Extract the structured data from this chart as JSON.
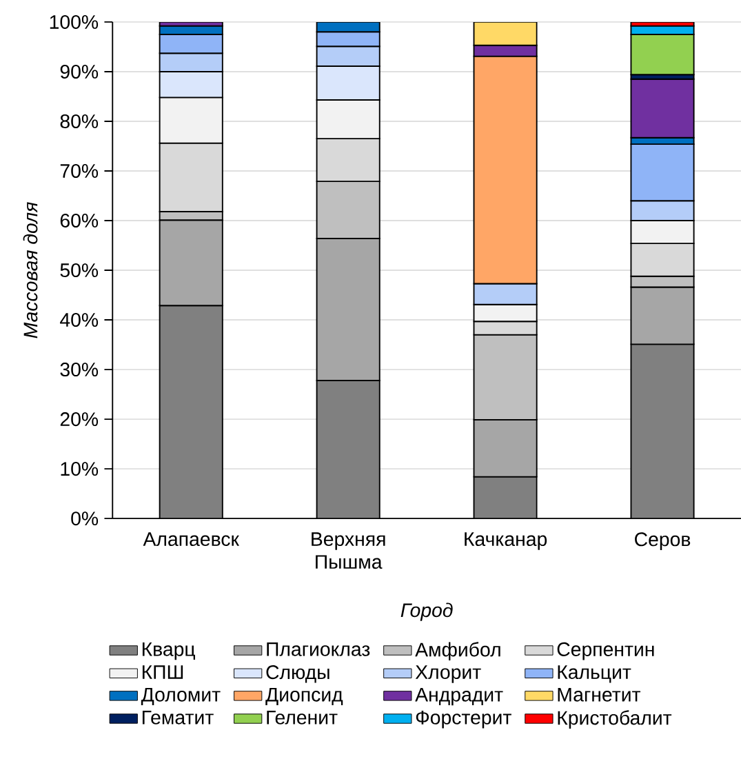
{
  "chart_data": {
    "type": "bar",
    "stacked": true,
    "xlabel": "Город",
    "ylabel": "Массовая доля",
    "categories": [
      "Алапаевск",
      "Верхняя Пышма",
      "Качканар",
      "Серов"
    ],
    "series": [
      {
        "name": "Кварц",
        "color": "#808080",
        "values": [
          42.9,
          27.8,
          8.4,
          35.1
        ]
      },
      {
        "name": "Плагиоклаз",
        "color": "#a6a6a6",
        "values": [
          17.2,
          28.6,
          11.5,
          11.5
        ]
      },
      {
        "name": "Амфибол",
        "color": "#bfbfbf",
        "values": [
          1.7,
          11.5,
          17.1,
          2.2
        ]
      },
      {
        "name": "Серпентин",
        "color": "#d9d9d9",
        "values": [
          13.8,
          8.6,
          2.7,
          6.6
        ]
      },
      {
        "name": "КПШ",
        "color": "#f2f2f2",
        "values": [
          9.2,
          7.8,
          3.4,
          4.6
        ]
      },
      {
        "name": "Слюды",
        "color": "#dae6fc",
        "values": [
          5.2,
          6.8,
          null,
          null
        ]
      },
      {
        "name": "Хлорит",
        "color": "#b4cdf8",
        "values": [
          3.7,
          4.0,
          4.2,
          4.0
        ]
      },
      {
        "name": "Кальцит",
        "color": "#8fb4f7",
        "values": [
          3.8,
          2.9,
          null,
          11.4
        ]
      },
      {
        "name": "Доломит",
        "color": "#0070c0",
        "values": [
          1.7,
          2.0,
          null,
          1.3
        ]
      },
      {
        "name": "Диопсид",
        "color": "#ffa666",
        "values": [
          null,
          null,
          45.8,
          null
        ]
      },
      {
        "name": "Андрадит",
        "color": "#7030a0",
        "values": [
          0.8,
          null,
          2.2,
          11.8
        ]
      },
      {
        "name": "Магнетит",
        "color": "#ffd966",
        "values": [
          null,
          null,
          4.7,
          null
        ]
      },
      {
        "name": "Гематит",
        "color": "#002060",
        "values": [
          null,
          null,
          null,
          0.9
        ]
      },
      {
        "name": "Геленит",
        "color": "#92d050",
        "values": [
          null,
          null,
          null,
          8.1
        ]
      },
      {
        "name": "Форстерит",
        "color": "#00b0f0",
        "values": [
          null,
          null,
          null,
          1.7
        ]
      },
      {
        "name": "Кристобалит",
        "color": "#ff0000",
        "values": [
          null,
          null,
          null,
          0.8
        ]
      }
    ],
    "ylim": [
      0,
      100
    ],
    "yticks": [
      {
        "value": 0,
        "label": "0%"
      },
      {
        "value": 10,
        "label": "10%"
      },
      {
        "value": 20,
        "label": "20%"
      },
      {
        "value": 30,
        "label": "30%"
      },
      {
        "value": 40,
        "label": "40%"
      },
      {
        "value": 50,
        "label": "50%"
      },
      {
        "value": 60,
        "label": "60%"
      },
      {
        "value": 70,
        "label": "70%"
      },
      {
        "value": 80,
        "label": "80%"
      },
      {
        "value": 90,
        "label": "90%"
      },
      {
        "value": 100,
        "label": "100%"
      }
    ],
    "grid": "y",
    "legend": "bottom"
  }
}
